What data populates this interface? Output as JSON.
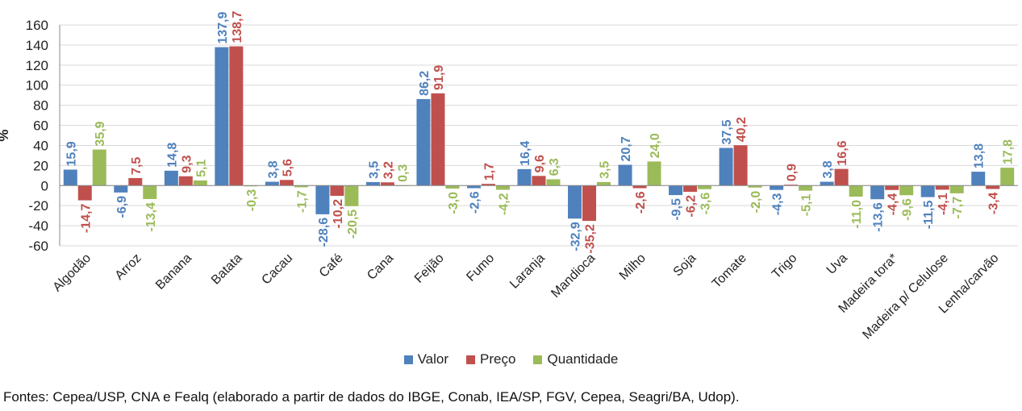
{
  "chart_data": {
    "type": "bar",
    "ylabel": "%",
    "ylim": [
      -60,
      160
    ],
    "yticks": [
      -60,
      -40,
      -20,
      0,
      20,
      40,
      60,
      80,
      100,
      120,
      140,
      160
    ],
    "grid": true,
    "legend_position": "bottom",
    "categories": [
      "Algodão",
      "Arroz",
      "Banana",
      "Batata",
      "Cacau",
      "Café",
      "Cana",
      "Feijão",
      "Fumo",
      "Laranja",
      "Mandioca",
      "Milho",
      "Soja",
      "Tomate",
      "Trigo",
      "Uva",
      "Madeira tora*",
      "Madeira p/ Celulose",
      "Lenha/carvão"
    ],
    "series": [
      {
        "name": "Valor",
        "color": "#4f81bd",
        "values": [
          15.9,
          -6.9,
          14.8,
          137.9,
          3.8,
          -28.6,
          3.5,
          86.2,
          -2.6,
          16.4,
          -32.9,
          20.7,
          -9.5,
          37.5,
          -4.3,
          3.8,
          -13.6,
          -11.5,
          13.8
        ],
        "labels": [
          "15,9",
          "-6,9",
          "14,8",
          "137,9",
          "3,8",
          "-28,6",
          "3,5",
          "86,2",
          "-2,6",
          "16,4",
          "-32,9",
          "20,7",
          "-9,5",
          "37,5",
          "-4,3",
          "3,8",
          "-13,6",
          "-11,5",
          "13,8"
        ]
      },
      {
        "name": "Preço",
        "color": "#c0504d",
        "values": [
          -14.7,
          7.5,
          9.3,
          138.7,
          5.6,
          -10.2,
          3.2,
          91.9,
          1.7,
          9.6,
          -35.2,
          -2.6,
          -6.2,
          40.2,
          0.9,
          16.6,
          -4.4,
          -4.1,
          -3.4
        ],
        "labels": [
          "-14,7",
          "7,5",
          "9,3",
          "138,7",
          "5,6",
          "-10,2",
          "3,2",
          "91,9",
          "1,7",
          "9,6",
          "-35,2",
          "-2,6",
          "-6,2",
          "40,2",
          "0,9",
          "16,6",
          "-4,4",
          "-4,1",
          "-3,4"
        ]
      },
      {
        "name": "Quantidade",
        "color": "#9bbb59",
        "values": [
          35.9,
          -13.4,
          5.1,
          -0.3,
          -1.7,
          -20.5,
          0.3,
          -3.0,
          -4.2,
          6.3,
          3.5,
          24.0,
          -3.6,
          -2.0,
          -5.1,
          -11.0,
          -9.6,
          -7.7,
          17.8
        ],
        "labels": [
          "35,9",
          "-13,4",
          "5,1",
          "-0,3",
          "-1,7",
          "-20,5",
          "0,3",
          "-3,0",
          "-4,2",
          "6,3",
          "3,5",
          "24,0",
          "-3,6",
          "-2,0",
          "-5,1",
          "-11,0",
          "-9,6",
          "-7,7",
          "17,8"
        ]
      }
    ]
  },
  "legend": {
    "items": [
      {
        "label": "Valor",
        "color": "#4f81bd"
      },
      {
        "label": "Preço",
        "color": "#c0504d"
      },
      {
        "label": "Quantidade",
        "color": "#9bbb59"
      }
    ]
  },
  "footer": {
    "source": "Fontes: Cepea/USP, CNA e Fealq (elaborado a partir de dados do IBGE, Conab, IEA/SP, FGV, Cepea, Seagri/BA, Udop)."
  }
}
